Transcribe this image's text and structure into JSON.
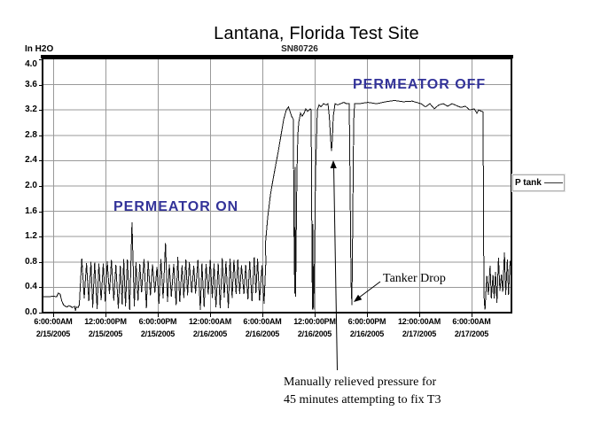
{
  "chart_data": {
    "type": "line",
    "title": "Lantana, Florida Test Site",
    "subtitle": "SN80726",
    "ylabel": "In H2O",
    "xlabel": "",
    "ylim": [
      0,
      4
    ],
    "ytick_step": 0.4,
    "grid": true,
    "series_name": "P tank",
    "legend_position": "right-outside",
    "annotation_color": "#333399",
    "colors": {
      "curve": "#141414",
      "grid": "#999999",
      "border": "#000000",
      "background": "#ffffff"
    },
    "yticks": [
      "4.0",
      "3.6",
      "3.2",
      "2.8",
      "2.4",
      "2.0",
      "1.6",
      "1.2",
      "0.8",
      "0.4",
      "0.0"
    ],
    "xticks": [
      {
        "time": "6:00:00AM",
        "date": "2/15/2005"
      },
      {
        "time": "12:00:00PM",
        "date": "2/15/2005"
      },
      {
        "time": "6:00:00PM",
        "date": "2/15/2005"
      },
      {
        "time": "12:00:00AM",
        "date": "2/16/2005"
      },
      {
        "time": "6:00:00AM",
        "date": "2/16/2005"
      },
      {
        "time": "12:00:00PM",
        "date": "2/16/2005"
      },
      {
        "time": "6:00:00PM",
        "date": "2/16/2005"
      },
      {
        "time": "12:00:00AM",
        "date": "2/17/2005"
      },
      {
        "time": "6:00:00AM",
        "date": "2/17/2005"
      }
    ],
    "annotations": {
      "permeator_on": "PERMEATOR ON",
      "permeator_off": "PERMEATOR OFF",
      "tanker_drop": "Tanker Drop",
      "manual_relief_line1": "Manually relieved pressure for",
      "manual_relief_line2": "45 minutes attempting to fix T3"
    },
    "curve_segments": [
      {
        "kind": "points",
        "pts": [
          [
            4.78,
            0.25
          ],
          [
            5.5,
            0.25
          ],
          [
            6.0,
            0.26
          ],
          [
            6.4,
            0.25
          ],
          [
            6.6,
            0.31
          ],
          [
            6.8,
            0.29
          ],
          [
            7.0,
            0.18
          ],
          [
            7.2,
            0.12
          ],
          [
            7.4,
            0.1
          ],
          [
            7.6,
            0.09
          ],
          [
            7.8,
            0.11
          ],
          [
            8.0,
            0.1
          ],
          [
            8.2,
            0.08
          ],
          [
            8.45,
            0.1
          ],
          [
            8.55,
            0.03
          ],
          [
            8.65,
            0.09
          ],
          [
            8.85,
            0.08
          ],
          [
            9.0,
            0.12
          ]
        ]
      },
      {
        "kind": "osc",
        "h0": 9.05,
        "h1": 30.3,
        "period": 0.47,
        "peak": [
          0.72,
          0.88
        ],
        "trough": [
          0.04,
          0.32
        ],
        "spikes": [
          [
            15.15,
            1.43
          ],
          [
            18.7,
            1.1
          ]
        ]
      },
      {
        "kind": "points",
        "pts": [
          [
            30.36,
            1.1
          ],
          [
            30.61,
            1.5
          ],
          [
            30.92,
            1.85
          ],
          [
            31.22,
            2.1
          ],
          [
            31.52,
            2.32
          ],
          [
            31.83,
            2.55
          ],
          [
            32.14,
            2.8
          ],
          [
            32.44,
            3.05
          ],
          [
            32.75,
            3.2
          ],
          [
            33.0,
            3.25
          ],
          [
            33.36,
            3.1
          ],
          [
            33.56,
            3.05
          ],
          [
            33.61,
            1.5
          ],
          [
            33.66,
            0.9
          ],
          [
            33.71,
            0.3
          ],
          [
            33.76,
            2.3
          ],
          [
            33.81,
            0.25
          ],
          [
            33.86,
            1.0
          ],
          [
            33.97,
            2.2
          ],
          [
            34.07,
            2.8
          ],
          [
            34.17,
            3.0
          ],
          [
            34.37,
            3.15
          ],
          [
            34.57,
            3.1
          ],
          [
            34.78,
            3.15
          ],
          [
            34.98,
            3.22
          ],
          [
            35.18,
            3.18
          ],
          [
            35.39,
            3.2
          ],
          [
            35.49,
            3.22
          ],
          [
            35.59,
            3.2
          ],
          [
            35.69,
            0.9
          ],
          [
            35.75,
            0.05
          ],
          [
            35.8,
            1.4
          ],
          [
            35.85,
            0.1
          ],
          [
            35.9,
            0.05
          ],
          [
            36.0,
            1.0
          ],
          [
            36.1,
            2.2
          ],
          [
            36.31,
            3.2
          ],
          [
            36.51,
            3.28
          ],
          [
            36.71,
            3.25
          ],
          [
            37.02,
            3.3
          ],
          [
            37.32,
            3.28
          ],
          [
            37.53,
            3.3
          ],
          [
            37.68,
            3.1
          ],
          [
            37.83,
            2.75
          ],
          [
            37.93,
            2.55
          ],
          [
            38.03,
            2.75
          ],
          [
            38.14,
            3.1
          ],
          [
            38.34,
            3.3
          ],
          [
            38.64,
            3.28
          ],
          [
            38.95,
            3.3
          ],
          [
            39.36,
            3.32
          ],
          [
            39.66,
            3.3
          ],
          [
            39.97,
            3.3
          ],
          [
            40.07,
            2.0
          ],
          [
            40.17,
            0.5
          ],
          [
            40.27,
            0.12
          ],
          [
            40.37,
            1.5
          ],
          [
            40.47,
            3.0
          ],
          [
            40.58,
            3.3
          ],
          [
            41.08,
            3.3
          ],
          [
            42.1,
            3.32
          ],
          [
            43.12,
            3.3
          ],
          [
            44.14,
            3.33
          ],
          [
            45.15,
            3.35
          ],
          [
            46.17,
            3.33
          ],
          [
            47.19,
            3.34
          ],
          [
            48.2,
            3.3
          ],
          [
            48.71,
            3.25
          ],
          [
            49.22,
            3.3
          ],
          [
            49.73,
            3.22
          ],
          [
            50.24,
            3.28
          ],
          [
            50.75,
            3.3
          ],
          [
            51.25,
            3.26
          ],
          [
            51.76,
            3.3
          ],
          [
            52.27,
            3.27
          ],
          [
            52.78,
            3.24
          ],
          [
            53.29,
            3.26
          ],
          [
            53.8,
            3.2
          ],
          [
            54.31,
            3.22
          ],
          [
            54.61,
            3.15
          ],
          [
            54.81,
            3.2
          ],
          [
            55.12,
            3.18
          ],
          [
            55.32,
            3.17
          ],
          [
            55.37,
            1.5
          ],
          [
            55.42,
            0.3
          ],
          [
            55.47,
            0.15
          ]
        ]
      },
      {
        "kind": "osc",
        "h0": 55.55,
        "h1": 58.45,
        "period": 0.33,
        "peak": [
          0.55,
          0.95
        ],
        "trough": [
          0.02,
          0.35
        ],
        "spikes": []
      }
    ]
  }
}
